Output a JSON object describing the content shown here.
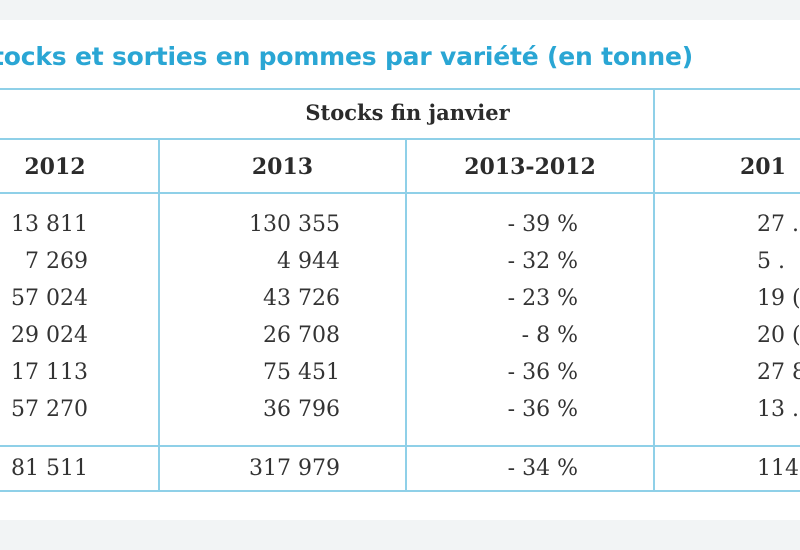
{
  "title": "tocks et sorties en pommes par variété (en tonne)",
  "group_header": "Stocks fin janvier",
  "columns": [
    "2012",
    "2013",
    "2013-2012",
    "201"
  ],
  "rows": [
    [
      "13 811",
      "130 355",
      "- 39 %",
      "27 ."
    ],
    [
      "7 269",
      "4 944",
      "- 32 %",
      "5 ."
    ],
    [
      "57 024",
      "43 726",
      "- 23 %",
      "19 ("
    ],
    [
      "29 024",
      "26 708",
      "- 8 %",
      "20 ("
    ],
    [
      "17 113",
      "75 451",
      "- 36 %",
      "27 8"
    ],
    [
      "57 270",
      "36 796",
      "- 36 %",
      "13 ."
    ]
  ],
  "total": [
    "81 511",
    "317 979",
    "- 34 %",
    "114"
  ],
  "colors": {
    "accent": "#2aa6d4",
    "rule": "#8fd0e8"
  }
}
